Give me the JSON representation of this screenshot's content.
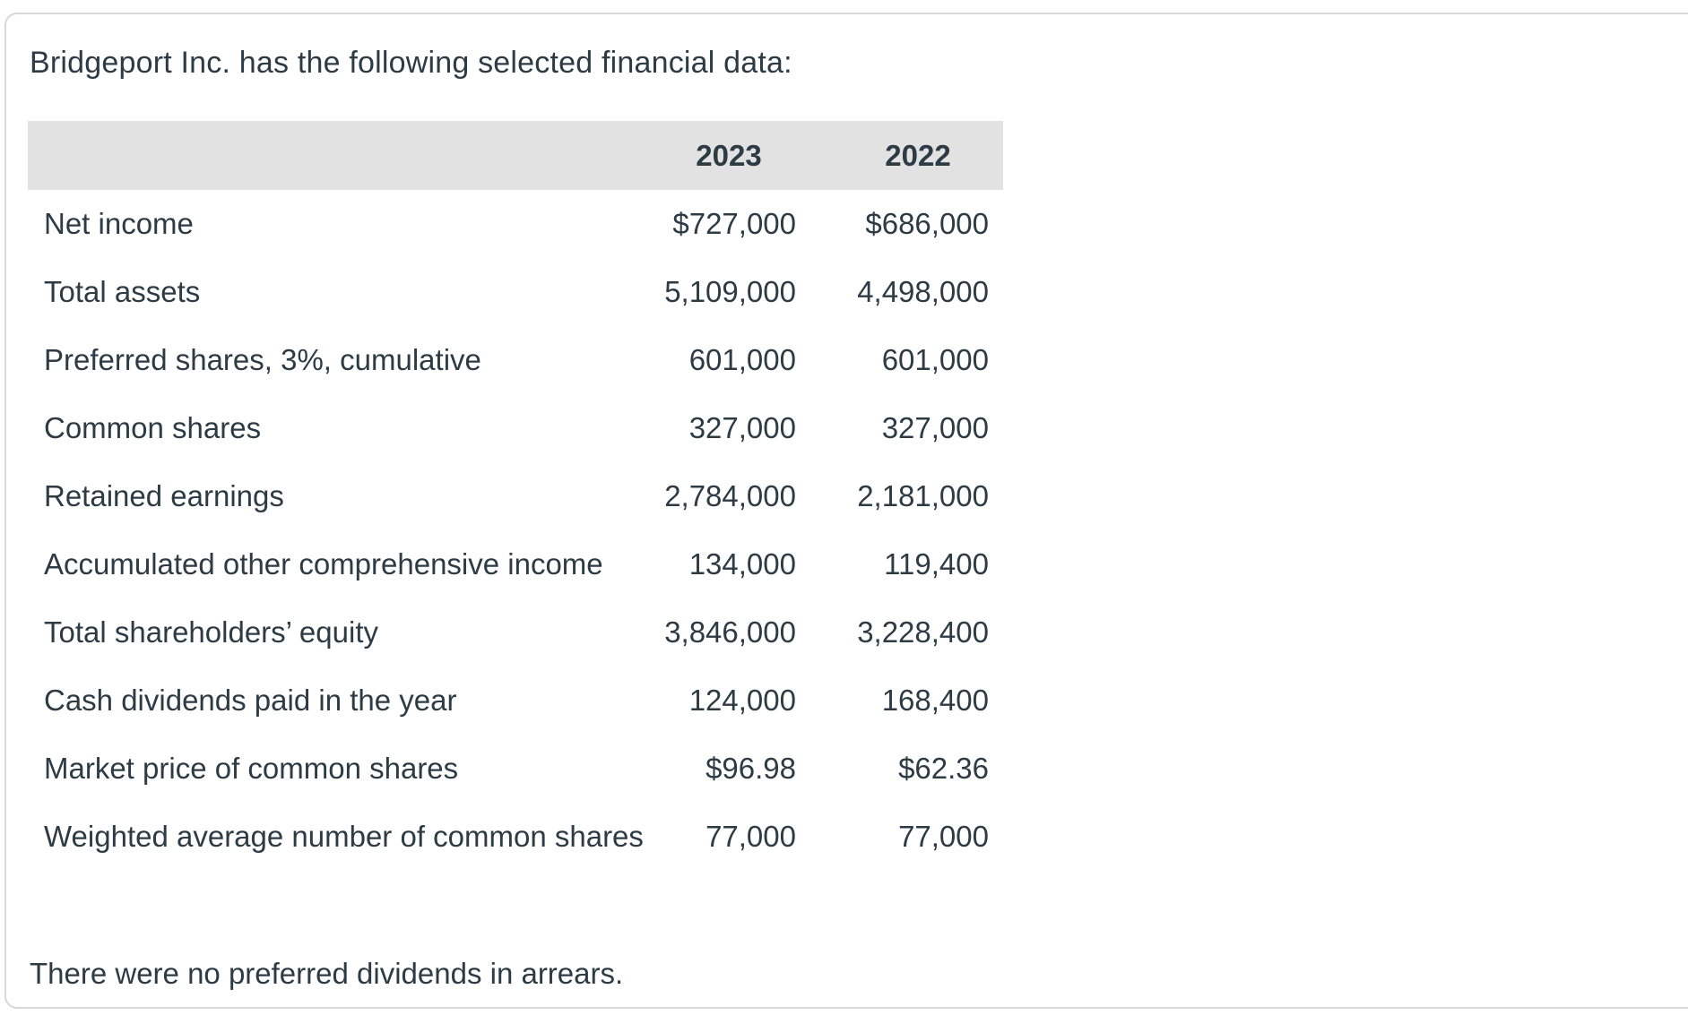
{
  "card": {
    "title": "Bridgeport Inc. has the following selected financial data:",
    "footnote": "There were no preferred dividends in arrears."
  },
  "table": {
    "headers": {
      "label": "",
      "col1": "2023",
      "col2": "2022"
    },
    "rows": [
      {
        "label": "Net income",
        "v2023": "$727,000",
        "v2022": "$686,000"
      },
      {
        "label": "Total assets",
        "v2023": "5,109,000",
        "v2022": "4,498,000"
      },
      {
        "label": "Preferred shares, 3%, cumulative",
        "v2023": "601,000",
        "v2022": "601,000"
      },
      {
        "label": "Common shares",
        "v2023": "327,000",
        "v2022": "327,000"
      },
      {
        "label": "Retained earnings",
        "v2023": "2,784,000",
        "v2022": "2,181,000"
      },
      {
        "label": "Accumulated other comprehensive income",
        "v2023": "134,000",
        "v2022": "119,400"
      },
      {
        "label": "Total shareholders’ equity",
        "v2023": "3,846,000",
        "v2022": "3,228,400"
      },
      {
        "label": "Cash dividends paid in the year",
        "v2023": "124,000",
        "v2022": "168,400"
      },
      {
        "label": "Market price of common shares",
        "v2023": "$96.98",
        "v2022": "$62.36"
      },
      {
        "label": "Weighted average number of common shares",
        "v2023": "77,000",
        "v2022": "77,000"
      }
    ]
  },
  "colors": {
    "text": "#2d3b45",
    "header_background": "#e2e2e2",
    "card_border": "#d8d8d8",
    "page_background": "#ffffff"
  }
}
